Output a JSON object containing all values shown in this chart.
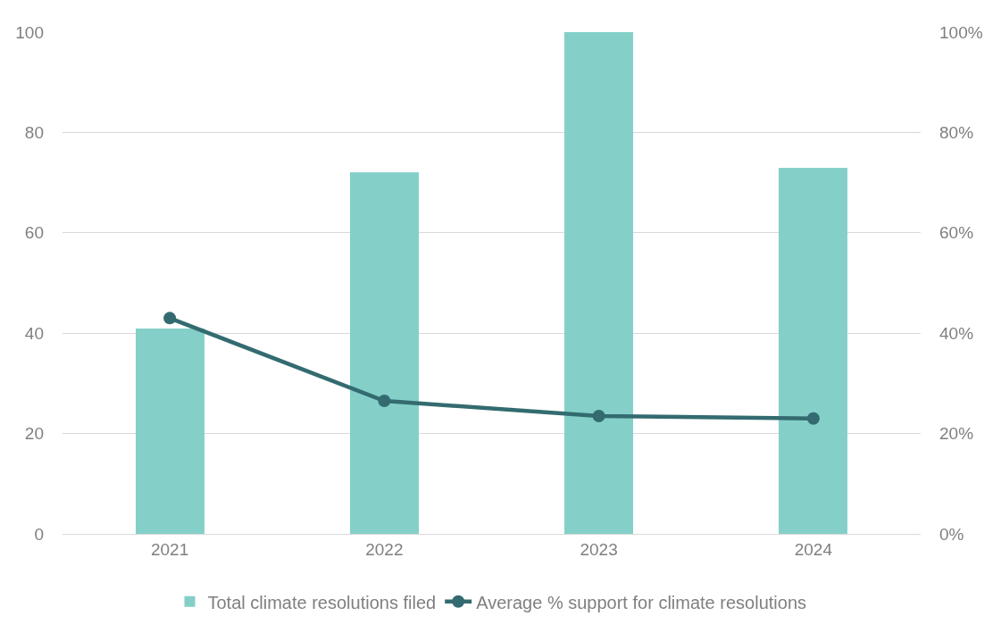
{
  "chart_data": {
    "type": "bar",
    "categories": [
      "2021",
      "2022",
      "2023",
      "2024"
    ],
    "series": [
      {
        "name": "Total climate resolutions filed",
        "color": "#84d0c9",
        "values": [
          41,
          72,
          100,
          73
        ]
      },
      {
        "name": "Average % support for climate resolutions",
        "type": "line",
        "axis": "y2",
        "color": "#336b70",
        "values": [
          43,
          26.5,
          23.5,
          23
        ]
      }
    ],
    "ylim": [
      0,
      100
    ],
    "yticks": [
      0,
      20,
      40,
      60,
      80,
      100
    ],
    "y2lim": [
      0,
      100
    ],
    "y2ticks": [
      {
        "value": 0,
        "label": "0%"
      },
      {
        "value": 20,
        "label": "20%"
      },
      {
        "value": 40,
        "label": "40%"
      },
      {
        "value": 60,
        "label": "60%"
      },
      {
        "value": 80,
        "label": "80%"
      },
      {
        "value": 100,
        "label": "100%"
      }
    ],
    "grid": "y",
    "legend": "bottom",
    "marker": "circle",
    "line_style": "solid"
  }
}
